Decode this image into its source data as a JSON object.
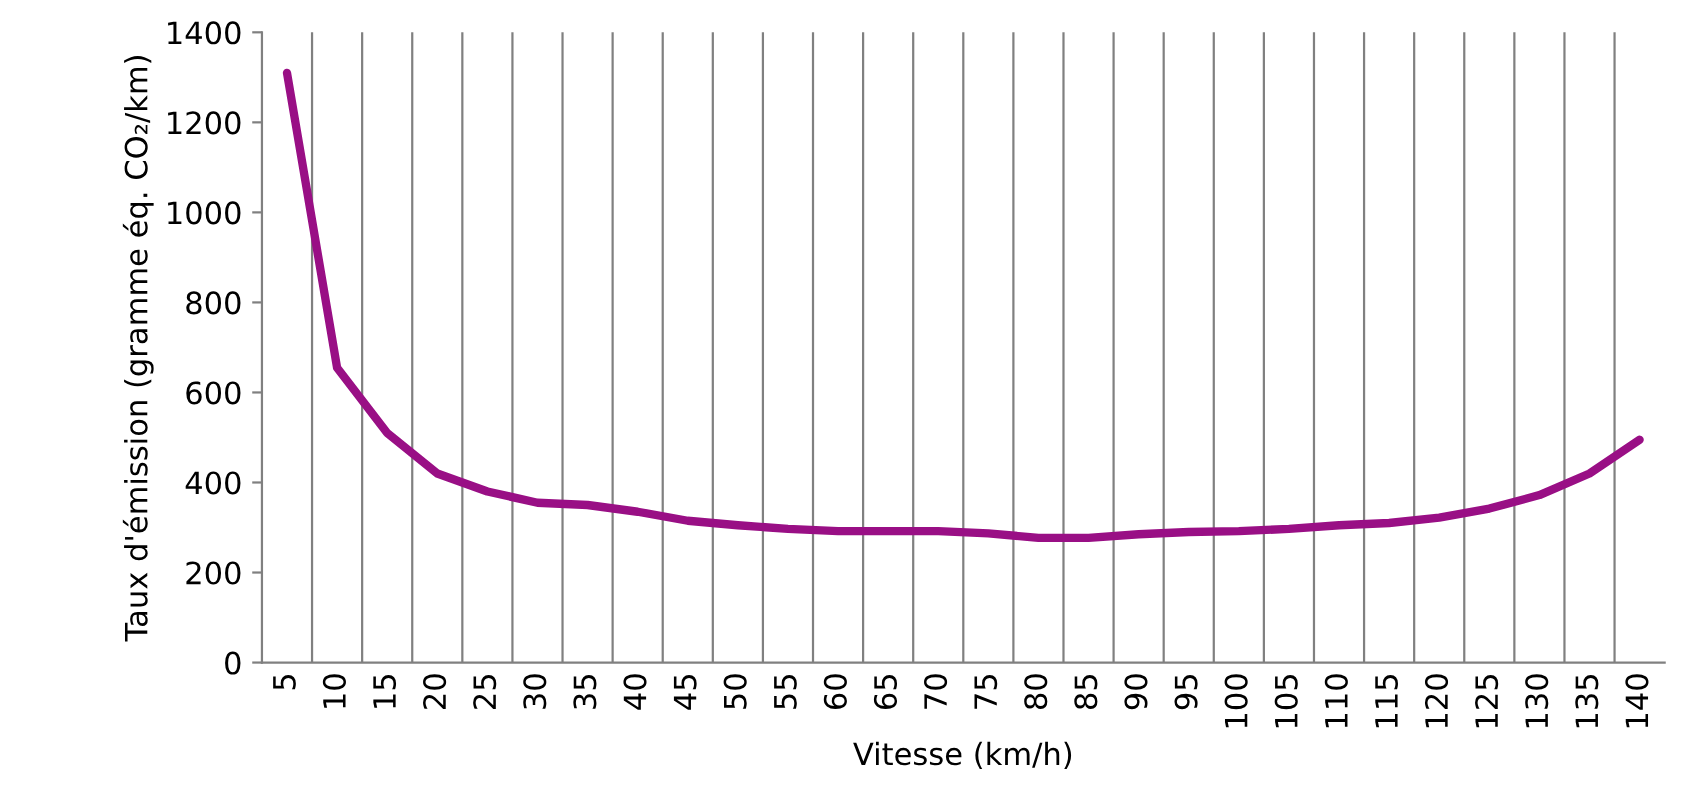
{
  "chart_data": {
    "type": "line",
    "xlabel": "Vitesse (km/h)",
    "ylabel": "Taux d'émission (gramme éq. CO₂/km)",
    "categories": [
      "5",
      "10",
      "15",
      "20",
      "25",
      "30",
      "35",
      "40",
      "45",
      "50",
      "55",
      "60",
      "65",
      "70",
      "75",
      "80",
      "85",
      "90",
      "95",
      "100",
      "105",
      "110",
      "115",
      "120",
      "125",
      "130",
      "135",
      "140"
    ],
    "series": [
      {
        "color": "#990f85",
        "values": [
          1310,
          655,
          510,
          420,
          380,
          355,
          350,
          335,
          315,
          305,
          297,
          292,
          292,
          292,
          287,
          277,
          277,
          285,
          290,
          292,
          297,
          305,
          310,
          322,
          342,
          372,
          420,
          495
        ]
      }
    ],
    "ylim": [
      0,
      1400
    ],
    "yticks": [
      0,
      200,
      400,
      600,
      800,
      1000,
      1200,
      1400
    ],
    "grid": "x",
    "marker": "none",
    "line_style": "solid",
    "legend": false
  }
}
